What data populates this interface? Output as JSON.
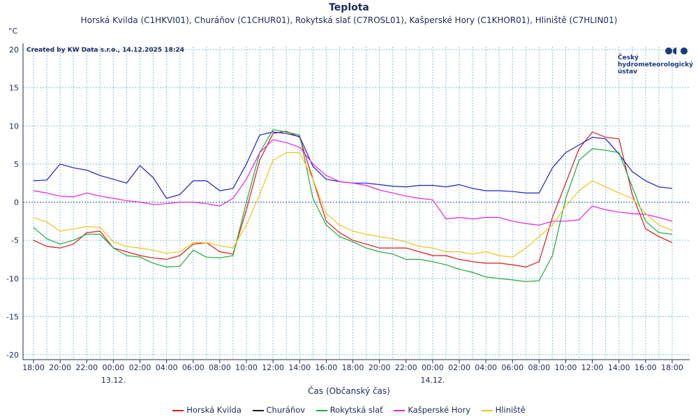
{
  "header": {
    "title": "Teplota",
    "subtitle": "Horská Kvilda (C1HKVI01), Churáňov (C1CHUR01), Rokytská slať (C7ROSL01), Kašperské Hory (C1KHOR01), Hliniště (C7HLIN01)",
    "unit": "°C",
    "credits": "Created by KW Data s.r.o., 14.12.2025 18:24"
  },
  "logo": {
    "line1": "Český",
    "line2": "hydrometeorologický",
    "line3": "ústav"
  },
  "colors": {
    "horska": "#d41b1b",
    "churanov": "#1e1ec8",
    "rokytska": "#22a83a",
    "kasperske": "#e61ee6",
    "hliniste": "#f0c318",
    "grid": "#7ec8d2",
    "axis": "#1a2a5a"
  },
  "chart_data": {
    "type": "line",
    "title": "Teplota",
    "xlabel": "Čas (Občanský čas)",
    "ylabel": "°C",
    "ylim": [
      -20,
      20
    ],
    "yticks": [
      -20,
      -15,
      -10,
      -5,
      0,
      5,
      10,
      15,
      20
    ],
    "xlim": [
      17.5,
      66.5
    ],
    "x_unit": "hours since 13.12. 00:00 minus 24 offset (0 = 12.12 00:00)",
    "xticks": [
      18,
      20,
      22,
      24,
      26,
      28,
      30,
      32,
      34,
      36,
      38,
      40,
      42,
      44,
      46,
      48,
      50,
      52,
      54,
      56,
      58,
      60,
      62,
      64,
      66
    ],
    "xtick_labels": [
      "18:00",
      "20:00",
      "22:00",
      "00:00",
      "02:00",
      "04:00",
      "06:00",
      "08:00",
      "10:00",
      "12:00",
      "14:00",
      "16:00",
      "18:00",
      "20:00",
      "22:00",
      "00:00",
      "02:00",
      "04:00",
      "06:00",
      "08:00",
      "10:00",
      "12:00",
      "14:00",
      "16:00",
      "18:00"
    ],
    "date_labels": [
      {
        "x": 24,
        "label": "13.12."
      },
      {
        "x": 48,
        "label": "14.12."
      }
    ],
    "legend": [
      "Horská Kvilda",
      "Churáňov",
      "Rokytská slať",
      "Kašperské Hory",
      "Hliniště"
    ],
    "series": [
      {
        "name": "Horská Kvilda",
        "color_key": "horska",
        "x": [
          18,
          19,
          20,
          21,
          22,
          23,
          24,
          25,
          26,
          27,
          28,
          29,
          30,
          31,
          32,
          33,
          34,
          35,
          36,
          37,
          38,
          39,
          40,
          41,
          42,
          43,
          44,
          45,
          46,
          47,
          48,
          49,
          50,
          51,
          52,
          53,
          54,
          55,
          56,
          57,
          58,
          59,
          60,
          61,
          62,
          63,
          64,
          65,
          66
        ],
        "y": [
          -5,
          -5.8,
          -6,
          -5.5,
          -4,
          -3.8,
          -6,
          -6.5,
          -7,
          -7.3,
          -7.5,
          -7,
          -5.5,
          -5.3,
          -6.5,
          -6.8,
          -1,
          5.5,
          9,
          9.3,
          8.5,
          3,
          -2.5,
          -4,
          -5,
          -5.5,
          -6,
          -6,
          -6,
          -6.5,
          -7,
          -7,
          -7.5,
          -7.8,
          -8,
          -8,
          -8.2,
          -8.5,
          -7.8,
          -2,
          2.5,
          7,
          9.2,
          8.5,
          8.3,
          1,
          -3.5,
          -4.5,
          -5.3
        ]
      },
      {
        "name": "Churáňov",
        "color_key": "churanov",
        "x": [
          18,
          19,
          20,
          21,
          22,
          23,
          24,
          25,
          26,
          27,
          28,
          29,
          30,
          31,
          32,
          33,
          34,
          35,
          36,
          37,
          38,
          39,
          40,
          41,
          42,
          43,
          44,
          45,
          46,
          47,
          48,
          49,
          50,
          51,
          52,
          53,
          54,
          55,
          56,
          57,
          58,
          59,
          60,
          61,
          62,
          63,
          64,
          65,
          66
        ],
        "y": [
          2.8,
          2.9,
          5,
          4.5,
          4.2,
          3.5,
          3,
          2.5,
          4.8,
          3.2,
          0.5,
          1,
          2.8,
          2.8,
          1.5,
          1.8,
          5,
          8.8,
          9.2,
          9,
          8.6,
          4.7,
          3,
          2.7,
          2.5,
          2.5,
          2.3,
          2.1,
          2,
          2.2,
          2.2,
          2,
          2.3,
          1.8,
          1.5,
          1.5,
          1.4,
          1.2,
          1.2,
          4.5,
          6.5,
          7.5,
          8.5,
          8.3,
          6.3,
          4,
          2.8,
          2,
          1.8
        ]
      },
      {
        "name": "Rokytská slať",
        "color_key": "rokytska",
        "x": [
          18,
          19,
          20,
          21,
          22,
          23,
          24,
          25,
          26,
          27,
          28,
          29,
          30,
          31,
          32,
          33,
          34,
          35,
          36,
          37,
          38,
          39,
          40,
          41,
          42,
          43,
          44,
          45,
          46,
          47,
          48,
          49,
          50,
          51,
          52,
          53,
          54,
          55,
          56,
          57,
          58,
          59,
          60,
          61,
          62,
          63,
          64,
          65,
          66
        ],
        "y": [
          -3.3,
          -4.8,
          -5.5,
          -5,
          -4.2,
          -4.2,
          -6,
          -7,
          -7.2,
          -8,
          -8.5,
          -8.4,
          -6.3,
          -7.2,
          -7.3,
          -7,
          0,
          6.5,
          9.5,
          9.2,
          8.8,
          0.5,
          -3,
          -4.5,
          -5.2,
          -6,
          -6.5,
          -6.8,
          -7.5,
          -7.5,
          -7.8,
          -8.2,
          -8.8,
          -9.2,
          -9.8,
          -10,
          -10.2,
          -10.4,
          -10.3,
          -7,
          0.5,
          5.5,
          7,
          6.8,
          6.5,
          2,
          -2.5,
          -4,
          -4.2
        ]
      },
      {
        "name": "Kašperské Hory",
        "color_key": "kasperske",
        "x": [
          18,
          19,
          20,
          21,
          22,
          23,
          24,
          25,
          26,
          27,
          28,
          29,
          30,
          31,
          32,
          33,
          34,
          35,
          36,
          37,
          38,
          39,
          40,
          41,
          42,
          43,
          44,
          45,
          46,
          47,
          48,
          49,
          50,
          51,
          52,
          53,
          54,
          55,
          56,
          57,
          58,
          59,
          60,
          61,
          62,
          63,
          64,
          65,
          66
        ],
        "y": [
          1.5,
          1.2,
          0.8,
          0.7,
          1.2,
          0.8,
          0.5,
          0.2,
          0,
          -0.3,
          -0.2,
          0,
          0,
          -0.2,
          -0.5,
          0.5,
          3,
          6.5,
          8.2,
          7.8,
          7.2,
          5,
          3.5,
          2.7,
          2.5,
          2.2,
          1.6,
          1.2,
          0.8,
          0.5,
          0.3,
          -2.2,
          -2,
          -2.2,
          -2,
          -2,
          -2.5,
          -2.8,
          -3,
          -2.5,
          -2.5,
          -2.3,
          -0.5,
          -1,
          -1.3,
          -1.5,
          -1.6,
          -2,
          -2.5
        ]
      },
      {
        "name": "Hliniště",
        "color_key": "hliniste",
        "x": [
          18,
          19,
          20,
          21,
          22,
          23,
          24,
          25,
          26,
          27,
          28,
          29,
          30,
          31,
          32,
          33,
          34,
          35,
          36,
          37,
          38,
          39,
          40,
          41,
          42,
          43,
          44,
          45,
          46,
          47,
          48,
          49,
          50,
          51,
          52,
          53,
          54,
          55,
          56,
          57,
          58,
          59,
          60,
          61,
          62,
          63,
          64,
          65,
          66
        ],
        "y": [
          -2,
          -2.6,
          -3.8,
          -3.5,
          -3.2,
          -3.3,
          -5.2,
          -5.8,
          -6,
          -6.3,
          -6.7,
          -6.5,
          -5.3,
          -5.3,
          -5.7,
          -6,
          -3,
          1,
          5.5,
          6.5,
          6.5,
          3,
          -1.5,
          -3,
          -3.8,
          -4.2,
          -4.5,
          -4.8,
          -5.2,
          -5.8,
          -6,
          -6.5,
          -6.5,
          -6.8,
          -6.5,
          -7,
          -7.2,
          -6,
          -4.5,
          -3,
          -0.5,
          1.5,
          2.8,
          2,
          1.2,
          0.5,
          -1.5,
          -3,
          -3.7
        ]
      }
    ]
  }
}
